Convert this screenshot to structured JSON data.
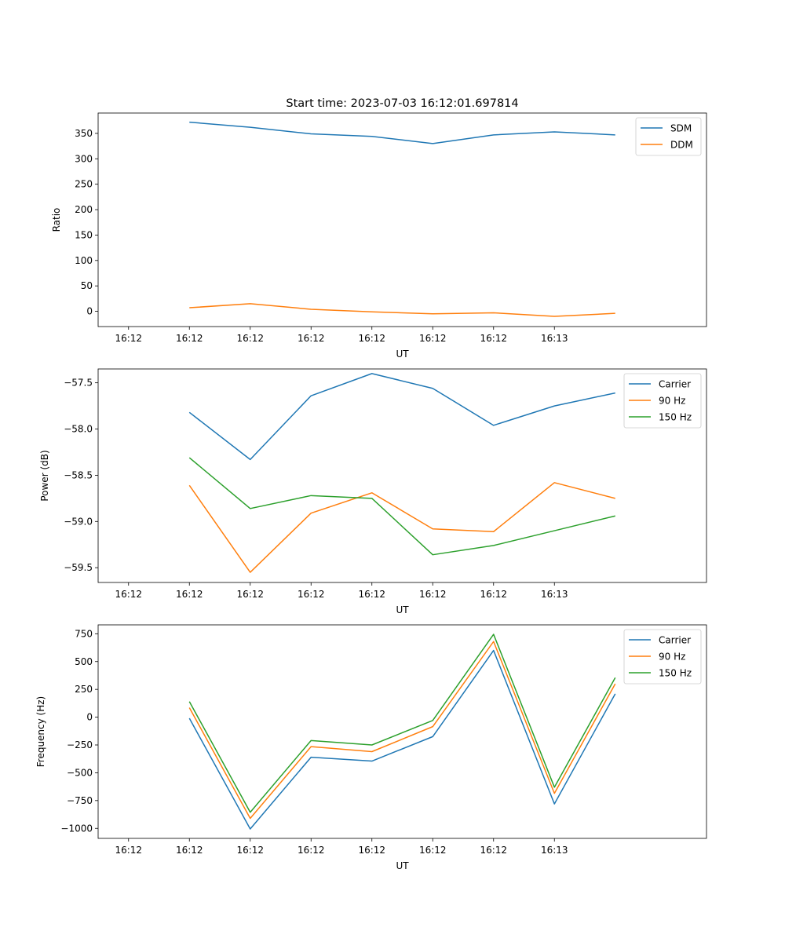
{
  "chart_data": [
    {
      "type": "line",
      "title": "Start time: 2023-07-03 16:12:01.697814",
      "xlabel": "UT",
      "ylabel": "Ratio",
      "x_tick_labels": [
        "16:12",
        "16:12",
        "16:12",
        "16:12",
        "16:12",
        "16:12",
        "16:12",
        "16:13"
      ],
      "y_ticks": [
        0,
        50,
        100,
        150,
        200,
        250,
        300,
        350
      ],
      "xlim": [
        -0.5,
        9.5
      ],
      "ylim": [
        -30,
        390
      ],
      "x": [
        1,
        2,
        3,
        4,
        5,
        6,
        7,
        8
      ],
      "legend_position": "top-right",
      "series": [
        {
          "name": "SDM",
          "color": "#1f77b4",
          "values": [
            372,
            362,
            349,
            344,
            330,
            347,
            353,
            347
          ]
        },
        {
          "name": "DDM",
          "color": "#ff7f0e",
          "values": [
            7,
            15,
            4,
            -1,
            -5,
            -3,
            -10,
            -4
          ]
        }
      ]
    },
    {
      "type": "line",
      "title": "",
      "xlabel": "UT",
      "ylabel": "Power (dB)",
      "x_tick_labels": [
        "16:12",
        "16:12",
        "16:12",
        "16:12",
        "16:12",
        "16:12",
        "16:12",
        "16:13"
      ],
      "y_ticks": [
        -59.5,
        -59.0,
        -58.5,
        -58.0,
        -57.5
      ],
      "y_tick_labels": [
        "−59.5",
        "−59.0",
        "−58.5",
        "−58.0",
        "−57.5"
      ],
      "xlim": [
        -0.5,
        9.5
      ],
      "ylim": [
        -59.66,
        -57.35
      ],
      "x": [
        1,
        2,
        3,
        4,
        5,
        6,
        7,
        8
      ],
      "legend_position": "top-right",
      "series": [
        {
          "name": "Carrier",
          "color": "#1f77b4",
          "values": [
            -57.82,
            -58.33,
            -57.64,
            -57.4,
            -57.56,
            -57.96,
            -57.75,
            -57.61
          ]
        },
        {
          "name": "90 Hz",
          "color": "#ff7f0e",
          "values": [
            -58.61,
            -59.55,
            -58.91,
            -58.69,
            -59.08,
            -59.11,
            -58.58,
            -58.75
          ]
        },
        {
          "name": "150 Hz",
          "color": "#2ca02c",
          "values": [
            -58.31,
            -58.86,
            -58.72,
            -58.75,
            -59.36,
            -59.26,
            -59.1,
            -58.94
          ]
        }
      ]
    },
    {
      "type": "line",
      "title": "",
      "xlabel": "UT",
      "ylabel": "Frequency (Hz)",
      "x_tick_labels": [
        "16:12",
        "16:12",
        "16:12",
        "16:12",
        "16:12",
        "16:12",
        "16:12",
        "16:13"
      ],
      "y_ticks": [
        -1000,
        -750,
        -500,
        -250,
        0,
        250,
        500,
        750
      ],
      "y_tick_labels": [
        "−1000",
        "−750",
        "−500",
        "−250",
        "0",
        "250",
        "500",
        "750"
      ],
      "xlim": [
        -0.5,
        9.5
      ],
      "ylim": [
        -1090,
        830
      ],
      "x": [
        1,
        2,
        3,
        4,
        5,
        6,
        7,
        8
      ],
      "legend_position": "top-right",
      "series": [
        {
          "name": "Carrier",
          "color": "#1f77b4",
          "values": [
            -10,
            -1005,
            -360,
            -395,
            -175,
            600,
            -780,
            210
          ]
        },
        {
          "name": "90 Hz",
          "color": "#ff7f0e",
          "values": [
            85,
            -910,
            -265,
            -310,
            -85,
            680,
            -685,
            300
          ]
        },
        {
          "name": "150 Hz",
          "color": "#2ca02c",
          "values": [
            140,
            -855,
            -210,
            -250,
            -30,
            745,
            -630,
            355
          ]
        }
      ]
    }
  ]
}
